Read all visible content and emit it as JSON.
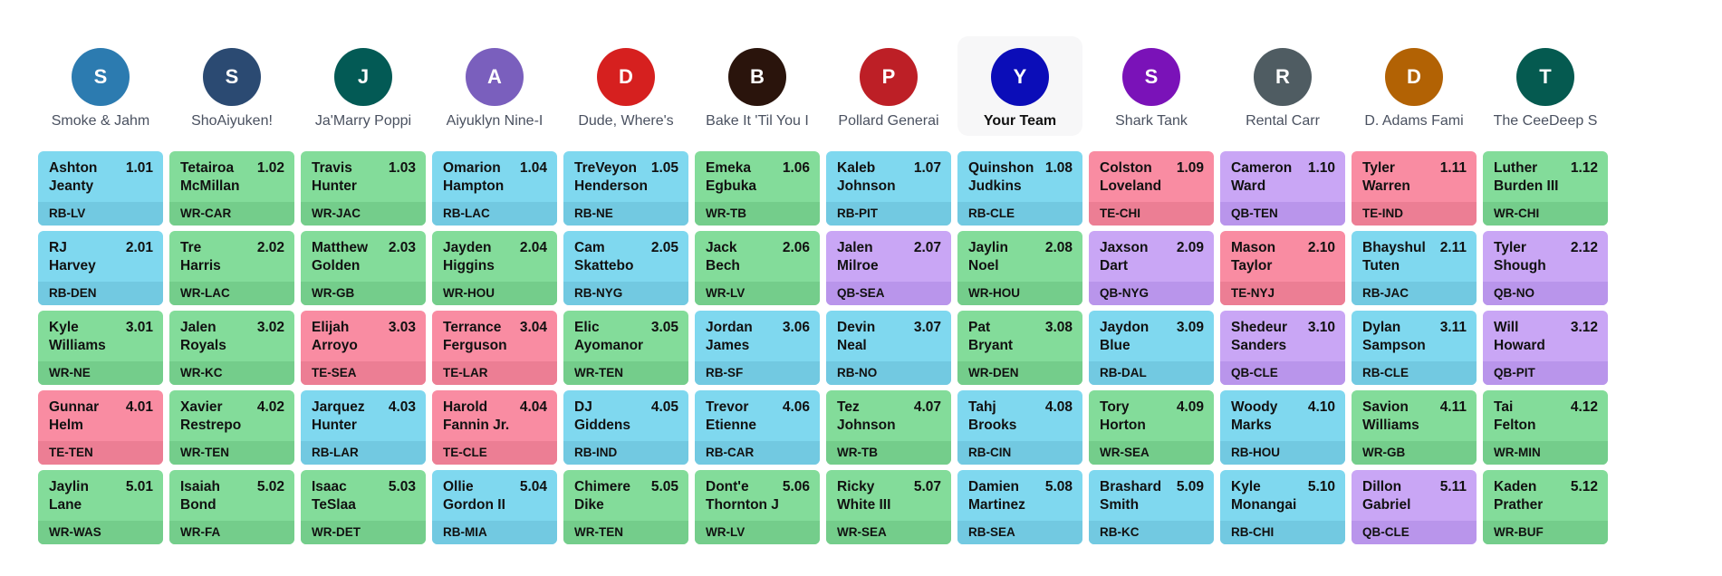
{
  "colors": {
    "RB": "#7fd8ef",
    "WR": "#83dc9a",
    "QB": "#c9a6f5",
    "TE": "#f98ca2"
  },
  "teams": [
    {
      "initial": "S",
      "name": "Smoke & Jahm",
      "color": "#2c7bb0",
      "mine": false
    },
    {
      "initial": "S",
      "name": "ShoAiyuken!",
      "color": "#2b4a72",
      "mine": false
    },
    {
      "initial": "J",
      "name": "Ja'Marry Poppi",
      "color": "#035a55",
      "mine": false
    },
    {
      "initial": "A",
      "name": "Aiyuklyn Nine-I",
      "color": "#7a5fbd",
      "mine": false
    },
    {
      "initial": "D",
      "name": "Dude, Where's",
      "color": "#d6201f",
      "mine": false
    },
    {
      "initial": "B",
      "name": "Bake It 'Til You I",
      "color": "#2a140c",
      "mine": false
    },
    {
      "initial": "P",
      "name": "Pollard Generai",
      "color": "#bd1f26",
      "mine": false
    },
    {
      "initial": "Y",
      "name": "Your Team",
      "color": "#0b0db8",
      "mine": true
    },
    {
      "initial": "S",
      "name": "Shark Tank",
      "color": "#7a12b8",
      "mine": false
    },
    {
      "initial": "R",
      "name": "Rental Carr",
      "color": "#4f5c62",
      "mine": false
    },
    {
      "initial": "D",
      "name": "D. Adams Fami",
      "color": "#b26204",
      "mine": false
    },
    {
      "initial": "T",
      "name": "The CeeDeep S",
      "color": "#055a50",
      "mine": false
    }
  ],
  "rounds": [
    [
      {
        "name": "Ashton\nJeanty",
        "pick": "1.01",
        "pos": "RB",
        "label": "RB-LV"
      },
      {
        "name": "Tetairoa\nMcMillan",
        "pick": "1.02",
        "pos": "WR",
        "label": "WR-CAR"
      },
      {
        "name": "Travis\nHunter",
        "pick": "1.03",
        "pos": "WR",
        "label": "WR-JAC"
      },
      {
        "name": "Omarion\nHampton",
        "pick": "1.04",
        "pos": "RB",
        "label": "RB-LAC"
      },
      {
        "name": "TreVeyon\nHenderson",
        "pick": "1.05",
        "pos": "RB",
        "label": "RB-NE"
      },
      {
        "name": "Emeka\nEgbuka",
        "pick": "1.06",
        "pos": "WR",
        "label": "WR-TB"
      },
      {
        "name": "Kaleb\nJohnson",
        "pick": "1.07",
        "pos": "RB",
        "label": "RB-PIT"
      },
      {
        "name": "Quinshon\nJudkins",
        "pick": "1.08",
        "pos": "RB",
        "label": "RB-CLE"
      },
      {
        "name": "Colston\nLoveland",
        "pick": "1.09",
        "pos": "TE",
        "label": "TE-CHI"
      },
      {
        "name": "Cameron\nWard",
        "pick": "1.10",
        "pos": "QB",
        "label": "QB-TEN"
      },
      {
        "name": "Tyler\nWarren",
        "pick": "1.11",
        "pos": "TE",
        "label": "TE-IND"
      },
      {
        "name": "Luther\nBurden III",
        "pick": "1.12",
        "pos": "WR",
        "label": "WR-CHI"
      }
    ],
    [
      {
        "name": "RJ\nHarvey",
        "pick": "2.01",
        "pos": "RB",
        "label": "RB-DEN"
      },
      {
        "name": "Tre\nHarris",
        "pick": "2.02",
        "pos": "WR",
        "label": "WR-LAC"
      },
      {
        "name": "Matthew\nGolden",
        "pick": "2.03",
        "pos": "WR",
        "label": "WR-GB"
      },
      {
        "name": "Jayden\nHiggins",
        "pick": "2.04",
        "pos": "WR",
        "label": "WR-HOU"
      },
      {
        "name": "Cam\nSkattebo",
        "pick": "2.05",
        "pos": "RB",
        "label": "RB-NYG"
      },
      {
        "name": "Jack\nBech",
        "pick": "2.06",
        "pos": "WR",
        "label": "WR-LV"
      },
      {
        "name": "Jalen\nMilroe",
        "pick": "2.07",
        "pos": "QB",
        "label": "QB-SEA"
      },
      {
        "name": "Jaylin\nNoel",
        "pick": "2.08",
        "pos": "WR",
        "label": "WR-HOU"
      },
      {
        "name": "Jaxson\nDart",
        "pick": "2.09",
        "pos": "QB",
        "label": "QB-NYG"
      },
      {
        "name": "Mason\nTaylor",
        "pick": "2.10",
        "pos": "TE",
        "label": "TE-NYJ"
      },
      {
        "name": "Bhayshul\nTuten",
        "pick": "2.11",
        "pos": "RB",
        "label": "RB-JAC"
      },
      {
        "name": "Tyler\nShough",
        "pick": "2.12",
        "pos": "QB",
        "label": "QB-NO"
      }
    ],
    [
      {
        "name": "Kyle\nWilliams",
        "pick": "3.01",
        "pos": "WR",
        "label": "WR-NE"
      },
      {
        "name": "Jalen\nRoyals",
        "pick": "3.02",
        "pos": "WR",
        "label": "WR-KC"
      },
      {
        "name": "Elijah\nArroyo",
        "pick": "3.03",
        "pos": "TE",
        "label": "TE-SEA"
      },
      {
        "name": "Terrance\nFerguson",
        "pick": "3.04",
        "pos": "TE",
        "label": "TE-LAR"
      },
      {
        "name": "Elic\nAyomanor",
        "pick": "3.05",
        "pos": "WR",
        "label": "WR-TEN"
      },
      {
        "name": "Jordan\nJames",
        "pick": "3.06",
        "pos": "RB",
        "label": "RB-SF"
      },
      {
        "name": "Devin\nNeal",
        "pick": "3.07",
        "pos": "RB",
        "label": "RB-NO"
      },
      {
        "name": "Pat\nBryant",
        "pick": "3.08",
        "pos": "WR",
        "label": "WR-DEN"
      },
      {
        "name": "Jaydon\nBlue",
        "pick": "3.09",
        "pos": "RB",
        "label": "RB-DAL"
      },
      {
        "name": "Shedeur\nSanders",
        "pick": "3.10",
        "pos": "QB",
        "label": "QB-CLE"
      },
      {
        "name": "Dylan\nSampson",
        "pick": "3.11",
        "pos": "RB",
        "label": "RB-CLE"
      },
      {
        "name": "Will\nHoward",
        "pick": "3.12",
        "pos": "QB",
        "label": "QB-PIT"
      }
    ],
    [
      {
        "name": "Gunnar\nHelm",
        "pick": "4.01",
        "pos": "TE",
        "label": "TE-TEN"
      },
      {
        "name": "Xavier\nRestrepo",
        "pick": "4.02",
        "pos": "WR",
        "label": "WR-TEN"
      },
      {
        "name": "Jarquez\nHunter",
        "pick": "4.03",
        "pos": "RB",
        "label": "RB-LAR"
      },
      {
        "name": "Harold\nFannin Jr.",
        "pick": "4.04",
        "pos": "TE",
        "label": "TE-CLE"
      },
      {
        "name": "DJ\nGiddens",
        "pick": "4.05",
        "pos": "RB",
        "label": "RB-IND"
      },
      {
        "name": "Trevor\nEtienne",
        "pick": "4.06",
        "pos": "RB",
        "label": "RB-CAR"
      },
      {
        "name": "Tez\nJohnson",
        "pick": "4.07",
        "pos": "WR",
        "label": "WR-TB"
      },
      {
        "name": "Tahj\nBrooks",
        "pick": "4.08",
        "pos": "RB",
        "label": "RB-CIN"
      },
      {
        "name": "Tory\nHorton",
        "pick": "4.09",
        "pos": "WR",
        "label": "WR-SEA"
      },
      {
        "name": "Woody\nMarks",
        "pick": "4.10",
        "pos": "RB",
        "label": "RB-HOU"
      },
      {
        "name": "Savion\nWilliams",
        "pick": "4.11",
        "pos": "WR",
        "label": "WR-GB"
      },
      {
        "name": "Tai\nFelton",
        "pick": "4.12",
        "pos": "WR",
        "label": "WR-MIN"
      }
    ],
    [
      {
        "name": "Jaylin\nLane",
        "pick": "5.01",
        "pos": "WR",
        "label": "WR-WAS"
      },
      {
        "name": "Isaiah\nBond",
        "pick": "5.02",
        "pos": "WR",
        "label": "WR-FA"
      },
      {
        "name": "Isaac\nTeSlaa",
        "pick": "5.03",
        "pos": "WR",
        "label": "WR-DET"
      },
      {
        "name": "Ollie\nGordon II",
        "pick": "5.04",
        "pos": "RB",
        "label": "RB-MIA"
      },
      {
        "name": "Chimere\nDike",
        "pick": "5.05",
        "pos": "WR",
        "label": "WR-TEN"
      },
      {
        "name": "Dont'e\nThornton J",
        "pick": "5.06",
        "pos": "WR",
        "label": "WR-LV"
      },
      {
        "name": "Ricky\nWhite III",
        "pick": "5.07",
        "pos": "WR",
        "label": "WR-SEA"
      },
      {
        "name": "Damien\nMartinez",
        "pick": "5.08",
        "pos": "RB",
        "label": "RB-SEA"
      },
      {
        "name": "Brashard\nSmith",
        "pick": "5.09",
        "pos": "RB",
        "label": "RB-KC"
      },
      {
        "name": "Kyle\nMonangai",
        "pick": "5.10",
        "pos": "RB",
        "label": "RB-CHI"
      },
      {
        "name": "Dillon\nGabriel",
        "pick": "5.11",
        "pos": "QB",
        "label": "QB-CLE"
      },
      {
        "name": "Kaden\nPrather",
        "pick": "5.12",
        "pos": "WR",
        "label": "WR-BUF"
      }
    ]
  ]
}
